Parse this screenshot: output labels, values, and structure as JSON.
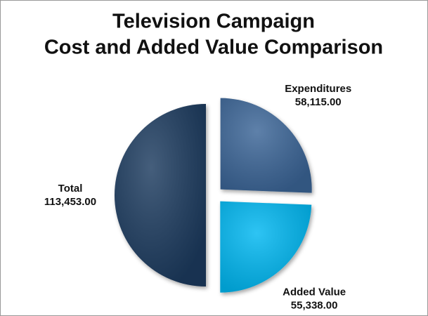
{
  "chart_data": {
    "type": "pie",
    "title": [
      "Television Campaign",
      "Cost and Added Value Comparison"
    ],
    "categories": [
      "Expenditures",
      "Added Value",
      "Total"
    ],
    "values": [
      58115,
      55338,
      113453
    ],
    "value_labels": [
      "58,115.00",
      "55,338.00",
      "113,453.00"
    ],
    "colors": [
      "#3a6597",
      "#00b7f1",
      "#1e3a5f"
    ]
  }
}
